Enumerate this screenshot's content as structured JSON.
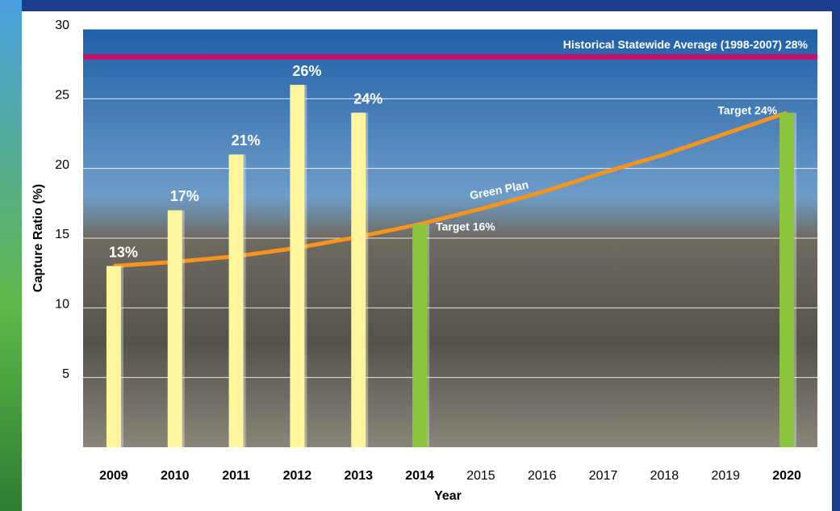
{
  "chart_data": {
    "type": "bar",
    "y_axis_label": "Capture Ratio (%)",
    "x_axis_label": "Year",
    "categories": [
      "2009",
      "2010",
      "2011",
      "2012",
      "2013",
      "2014",
      "2015",
      "2016",
      "2017",
      "2018",
      "2019",
      "2020"
    ],
    "values": [
      13,
      17,
      21,
      26,
      24,
      16,
      null,
      null,
      null,
      null,
      null,
      24
    ],
    "value_labels": [
      "13%",
      "17%",
      "21%",
      "26%",
      "24%",
      "Target 16%",
      null,
      null,
      null,
      null,
      null,
      "Target 24%"
    ],
    "colors": [
      "#fff59d",
      "#fff59d",
      "#fff59d",
      "#fff59d",
      "#fff59d",
      "#8cc63f",
      null,
      null,
      null,
      null,
      null,
      "#8cc63f"
    ],
    "line": {
      "name": "Green Plan",
      "color": "#f7941d",
      "values": [
        13,
        13.3,
        13.7,
        14.3,
        15.1,
        16,
        17.1,
        18.3,
        19.7,
        21,
        22.5,
        24
      ]
    },
    "reference_line": {
      "label": "Historical Statewide Average (1998-2007) 28%",
      "value": 28,
      "color": "#c2136f"
    },
    "ylim": [
      0,
      30
    ],
    "yticks": [
      5,
      10,
      15,
      20,
      25,
      30
    ],
    "grid": true
  }
}
